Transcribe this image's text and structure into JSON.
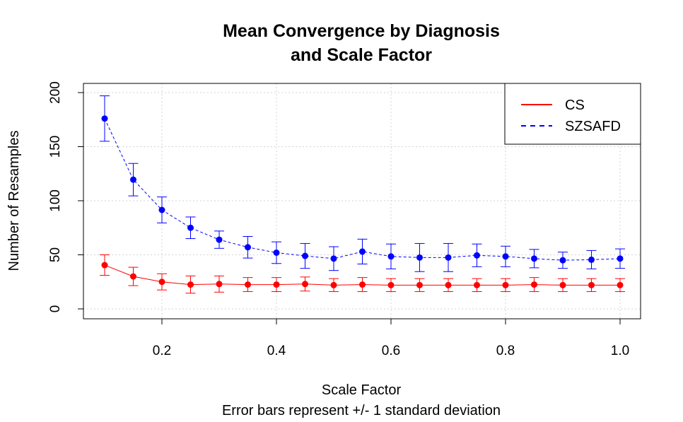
{
  "chart_data": {
    "type": "line",
    "title_line1": "Mean Convergence by Diagnosis",
    "title_line2": "and Scale Factor",
    "xlabel": "Scale Factor",
    "subtitle": "Error bars represent +/- 1 standard deviation",
    "ylabel": "Number of Resamples",
    "xlim": [
      0.1,
      1.0
    ],
    "ylim": [
      0,
      200
    ],
    "x_ticks": [
      0.2,
      0.4,
      0.6,
      0.8,
      1.0
    ],
    "x_tick_labels": [
      "0.2",
      "0.4",
      "0.6",
      "0.8",
      "1.0"
    ],
    "y_ticks": [
      0,
      50,
      100,
      150,
      200
    ],
    "y_tick_labels": [
      "0",
      "50",
      "100",
      "150",
      "200"
    ],
    "grid": true,
    "legend_position": "top-right",
    "x": [
      0.1,
      0.15,
      0.2,
      0.25,
      0.3,
      0.35,
      0.4,
      0.45,
      0.5,
      0.55,
      0.6,
      0.65,
      0.7,
      0.75,
      0.8,
      0.85,
      0.9,
      0.95,
      1.0
    ],
    "series": [
      {
        "name": "CS",
        "color": "#ff0000",
        "line_style": "solid",
        "values": [
          40.5,
          30,
          25,
          22.5,
          23,
          22.5,
          22.5,
          23,
          22,
          22.5,
          22,
          22,
          22,
          22,
          22,
          22.5,
          22,
          22,
          22
        ],
        "sd": [
          9.5,
          8.5,
          7.5,
          8,
          7.5,
          6.5,
          6.5,
          6.5,
          6,
          6.5,
          6,
          6,
          6,
          6,
          6,
          6.5,
          6,
          6,
          6
        ]
      },
      {
        "name": "SZSAFD",
        "color": "#0000ff",
        "line_style": "dashed",
        "values": [
          176,
          119.5,
          91.5,
          75,
          64,
          57,
          52,
          49,
          46.5,
          53,
          48.5,
          47.5,
          47.5,
          49.5,
          48.5,
          46.5,
          45,
          45.5,
          46.5
        ],
        "sd": [
          21,
          15,
          12,
          10,
          8,
          10,
          10,
          11.5,
          11,
          11.5,
          11.5,
          13,
          13,
          10.5,
          9.5,
          8.5,
          7.5,
          8.5,
          9
        ]
      }
    ]
  }
}
